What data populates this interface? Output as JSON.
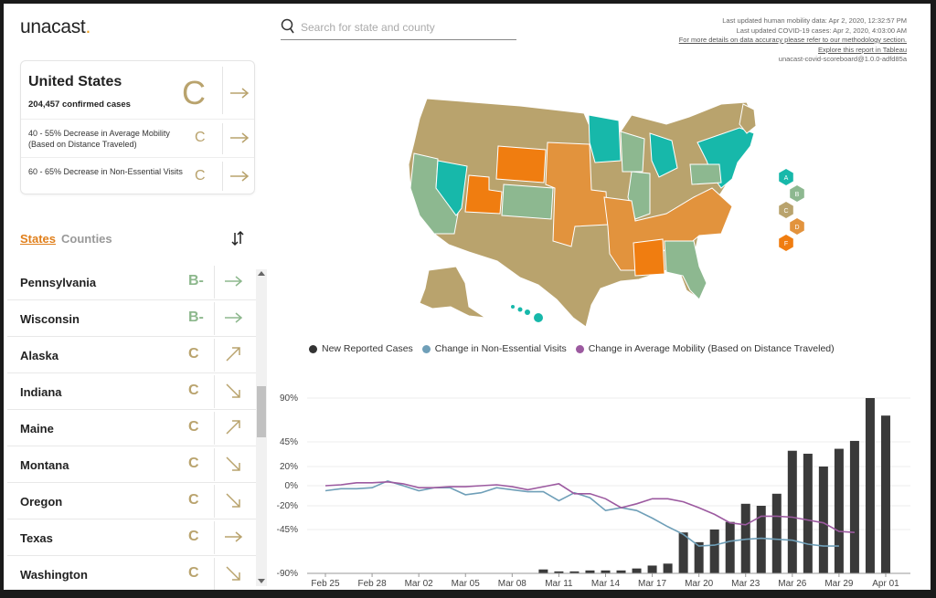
{
  "brand": {
    "logo_text": "unacast",
    "logo_dot": ".",
    "accent": "#f0a020"
  },
  "search": {
    "placeholder": "Search for state and county"
  },
  "meta": {
    "line1": "Last updated human mobility data: Apr 2, 2020, 12:32:57 PM",
    "line2": "Last updated COVID-19 cases: Apr 2, 2020, 4:03:00 AM",
    "line3": "For more details on data accuracy please refer to our methodology section.",
    "line4": "Explore this report in Tableau",
    "line5": "unacast-covid-scoreboard@1.0.0-adfd85a"
  },
  "summary": {
    "name": "United States",
    "cases": "204,457 confirmed cases",
    "grade": "C",
    "mobility_label": "40 - 55% Decrease in Average Mobility (Based on Distance Traveled)",
    "mobility_grade": "C",
    "visits_label": "60 - 65% Decrease in Non-Essential Visits",
    "visits_grade": "C"
  },
  "tabs": {
    "states": "States",
    "counties": "Counties"
  },
  "states": [
    {
      "name": "Pennsylvania",
      "grade": "B-",
      "trend": "right",
      "color": "#8db88d"
    },
    {
      "name": "Wisconsin",
      "grade": "B-",
      "trend": "right",
      "color": "#8db88d"
    },
    {
      "name": "Alaska",
      "grade": "C",
      "trend": "up",
      "color": "#b9a36d"
    },
    {
      "name": "Indiana",
      "grade": "C",
      "trend": "down",
      "color": "#b9a36d"
    },
    {
      "name": "Maine",
      "grade": "C",
      "trend": "up",
      "color": "#b9a36d"
    },
    {
      "name": "Montana",
      "grade": "C",
      "trend": "down",
      "color": "#b9a36d"
    },
    {
      "name": "Oregon",
      "grade": "C",
      "trend": "down",
      "color": "#b9a36d"
    },
    {
      "name": "Texas",
      "grade": "C",
      "trend": "right",
      "color": "#b9a36d"
    },
    {
      "name": "Washington",
      "grade": "C",
      "trend": "down",
      "color": "#b9a36d"
    }
  ],
  "grade_scale": [
    {
      "grade": "A",
      "color": "#17b8aa"
    },
    {
      "grade": "B",
      "color": "#8db890"
    },
    {
      "grade": "C",
      "color": "#b9a36d"
    },
    {
      "grade": "D",
      "color": "#e2933d"
    },
    {
      "grade": "F",
      "color": "#f07d10"
    }
  ],
  "chart_data": {
    "type": "bar",
    "legend": [
      {
        "name": "New Reported Cases",
        "color": "#333333"
      },
      {
        "name": "Change in Non-Essential Visits",
        "color": "#6f9fb8"
      },
      {
        "name": "Change in Average Mobility (Based on Distance Traveled)",
        "color": "#9c5aa0"
      }
    ],
    "y_ticks": [
      "90%",
      "45%",
      "20%",
      "0%",
      "-20%",
      "-45%",
      "-90%"
    ],
    "y_tick_values": [
      90,
      45,
      20,
      0,
      -20,
      -45,
      -90
    ],
    "ylim": [
      -90,
      100
    ],
    "x_ticks": [
      "Feb 25",
      "Feb 28",
      "Mar 02",
      "Mar 05",
      "Mar 08",
      "Mar 11",
      "Mar 14",
      "Mar 17",
      "Mar 20",
      "Mar 23",
      "Mar 26",
      "Mar 29",
      "Apr 01"
    ],
    "dates": [
      "Feb 25",
      "Feb 26",
      "Feb 27",
      "Feb 28",
      "Feb 29",
      "Mar 01",
      "Mar 02",
      "Mar 03",
      "Mar 04",
      "Mar 05",
      "Mar 06",
      "Mar 07",
      "Mar 08",
      "Mar 09",
      "Mar 10",
      "Mar 11",
      "Mar 12",
      "Mar 13",
      "Mar 14",
      "Mar 15",
      "Mar 16",
      "Mar 17",
      "Mar 18",
      "Mar 19",
      "Mar 20",
      "Mar 21",
      "Mar 22",
      "Mar 23",
      "Mar 24",
      "Mar 25",
      "Mar 26",
      "Mar 27",
      "Mar 28",
      "Mar 29",
      "Mar 30",
      "Mar 31",
      "Apr 01",
      "Apr 02"
    ],
    "series": [
      {
        "name": "New Reported Cases",
        "kind": "bar",
        "values": [
          null,
          null,
          null,
          null,
          null,
          null,
          null,
          null,
          null,
          null,
          null,
          null,
          null,
          null,
          -86,
          -88,
          -88,
          -87,
          -87,
          -87,
          -85,
          -82,
          -80,
          -48,
          -58,
          -45,
          -37,
          -18,
          -20,
          -8,
          36,
          33,
          20,
          38,
          46,
          90,
          72,
          null
        ]
      },
      {
        "name": "Change in Non-Essential Visits",
        "kind": "line",
        "values": [
          -5,
          -3,
          -3,
          -2,
          5,
          0,
          -5,
          -2,
          -2,
          -9,
          -7,
          -2,
          -4,
          -6,
          -6,
          -15,
          -7,
          -12,
          -25,
          -22,
          -25,
          -33,
          -42,
          -50,
          -62,
          -61,
          -57,
          -55,
          -54,
          -55,
          -56,
          -60,
          -62,
          -62,
          null,
          null,
          null,
          null
        ]
      },
      {
        "name": "Change in Average Mobility (Based on Distance Traveled)",
        "kind": "line",
        "values": [
          0,
          1,
          3,
          3,
          4,
          2,
          -2,
          -2,
          -1,
          -1,
          0,
          1,
          -1,
          -4,
          -1,
          2,
          -8,
          -8,
          -13,
          -22,
          -18,
          -13,
          -13,
          -16,
          -22,
          -29,
          -38,
          -40,
          -31,
          -31,
          -32,
          -35,
          -38,
          -47,
          -48,
          null,
          null,
          null
        ]
      }
    ]
  }
}
